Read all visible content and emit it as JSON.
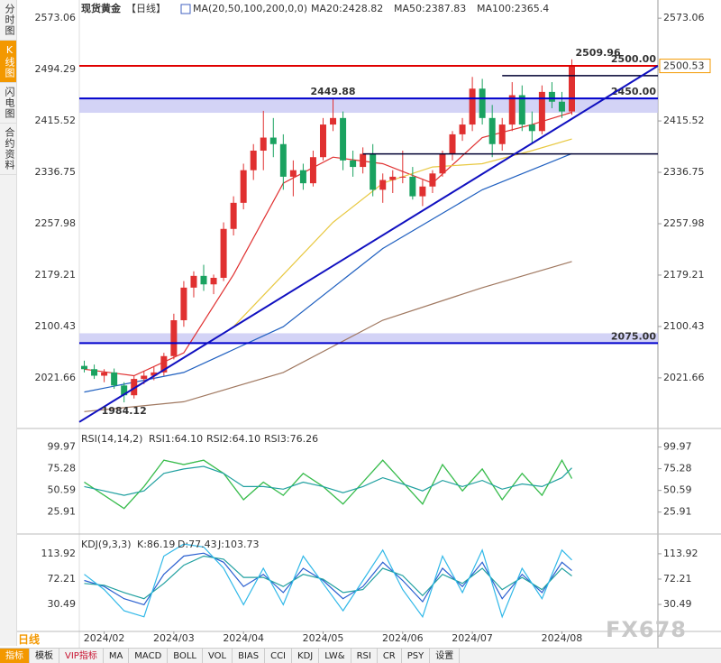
{
  "sidebar_tabs": [
    "分时图",
    "K线图",
    "闪电图",
    "合约资料"
  ],
  "period_button": "日线",
  "toolbar": [
    "指标",
    "模板",
    "VIP指标",
    "MA",
    "MACD",
    "BOLL",
    "VOL",
    "BIAS",
    "CCI",
    "KDJ",
    "LW&",
    "RSI",
    "CR",
    "PSY",
    "设置"
  ],
  "watermark": "FX678",
  "chart_data": [
    {
      "type": "candlestick",
      "title": "现货黄金",
      "subtitle": "【日线】",
      "indicator": "MA(20,50,100,200,0,0)",
      "up_color": "#e03030",
      "down_color": "#1aa260",
      "ylim": [
        1951,
        2594
      ],
      "yticks": [
        2573.06,
        2494.29,
        2415.52,
        2336.75,
        2257.98,
        2179.21,
        2100.43,
        2021.66
      ],
      "xlim": [
        -0.5,
        57.65
      ],
      "xticks": [
        {
          "value": 2,
          "label": "2024/02"
        },
        {
          "value": 9,
          "label": "2024/03"
        },
        {
          "value": 16,
          "label": "2024/04"
        },
        {
          "value": 24,
          "label": "2024/05"
        },
        {
          "value": 32,
          "label": "2024/06"
        },
        {
          "value": 39,
          "label": "2024/07"
        },
        {
          "value": 48,
          "label": "2024/08"
        }
      ],
      "candles": [
        [
          2040,
          2048,
          2030,
          2035
        ],
        [
          2035,
          2042,
          2020,
          2025
        ],
        [
          2025,
          2035,
          2015,
          2030
        ],
        [
          2030,
          2036,
          2005,
          2010
        ],
        [
          2010,
          2015,
          1984.12,
          1995
        ],
        [
          1995,
          2025,
          1990,
          2020
        ],
        [
          2020,
          2032,
          2012,
          2025
        ],
        [
          2025,
          2038,
          2018,
          2030
        ],
        [
          2030,
          2060,
          2025,
          2055
        ],
        [
          2055,
          2120,
          2050,
          2110
        ],
        [
          2110,
          2170,
          2100,
          2160
        ],
        [
          2160,
          2185,
          2145,
          2178
        ],
        [
          2178,
          2195,
          2155,
          2165
        ],
        [
          2165,
          2180,
          2150,
          2175
        ],
        [
          2175,
          2260,
          2170,
          2250
        ],
        [
          2250,
          2300,
          2240,
          2290
        ],
        [
          2290,
          2350,
          2280,
          2340
        ],
        [
          2340,
          2380,
          2325,
          2370
        ],
        [
          2370,
          2431,
          2340,
          2390
        ],
        [
          2390,
          2420,
          2360,
          2380
        ],
        [
          2380,
          2395,
          2310,
          2330
        ],
        [
          2330,
          2355,
          2300,
          2340
        ],
        [
          2340,
          2350,
          2310,
          2320
        ],
        [
          2320,
          2370,
          2315,
          2360
        ],
        [
          2360,
          2420,
          2355,
          2410
        ],
        [
          2410,
          2449.88,
          2400,
          2420
        ],
        [
          2420,
          2430,
          2340,
          2355
        ],
        [
          2355,
          2370,
          2330,
          2345
        ],
        [
          2345,
          2375,
          2335,
          2365
        ],
        [
          2365,
          2380,
          2300,
          2310
        ],
        [
          2310,
          2335,
          2290,
          2325
        ],
        [
          2325,
          2340,
          2305,
          2330
        ],
        [
          2330,
          2370,
          2320,
          2330
        ],
        [
          2330,
          2345,
          2295,
          2300
        ],
        [
          2300,
          2325,
          2285,
          2315
        ],
        [
          2315,
          2340,
          2305,
          2335
        ],
        [
          2335,
          2370,
          2330,
          2365
        ],
        [
          2365,
          2400,
          2355,
          2395
        ],
        [
          2395,
          2420,
          2385,
          2410
        ],
        [
          2410,
          2483,
          2400,
          2465
        ],
        [
          2465,
          2480,
          2410,
          2420
        ],
        [
          2420,
          2440,
          2360,
          2380
        ],
        [
          2380,
          2420,
          2370,
          2410
        ],
        [
          2410,
          2475,
          2400,
          2455
        ],
        [
          2455,
          2470,
          2400,
          2410
        ],
        [
          2410,
          2430,
          2380,
          2400
        ],
        [
          2400,
          2470,
          2395,
          2460
        ],
        [
          2460,
          2475,
          2435,
          2445
        ],
        [
          2445,
          2460,
          2420,
          2430
        ],
        [
          2430,
          2509.96,
          2425,
          2500.53
        ]
      ],
      "series": [
        {
          "name": "MA20:2428.82",
          "color": "#e03030",
          "x": [
            0,
            5,
            10,
            15,
            20,
            25,
            30,
            35,
            40,
            45,
            49
          ],
          "values": [
            2035,
            2025,
            2060,
            2180,
            2320,
            2360,
            2350,
            2320,
            2390,
            2410,
            2428.82
          ]
        },
        {
          "name": "MA50:2387.83",
          "color": "#e8c840",
          "x": [
            15,
            20,
            25,
            30,
            35,
            40,
            45,
            49
          ],
          "values": [
            2100,
            2180,
            2260,
            2320,
            2345,
            2350,
            2370,
            2387.83
          ]
        },
        {
          "name": "MA100:2365.4",
          "color": "#2060c0",
          "x": [
            0,
            10,
            20,
            30,
            40,
            49
          ],
          "values": [
            2000,
            2030,
            2100,
            2220,
            2310,
            2365.4
          ]
        },
        {
          "color": "#a07860",
          "x": [
            0,
            10,
            20,
            30,
            40,
            49
          ],
          "values": [
            1970,
            1985,
            2030,
            2110,
            2160,
            2200
          ]
        }
      ],
      "levels": [
        {
          "value": 2500,
          "label": "2500.00",
          "color": "#e00000"
        },
        {
          "value": 2450,
          "label": "2450.00",
          "color": "#0000cc"
        },
        {
          "value": 2075,
          "label": "2075.00",
          "color": "#0000cc"
        }
      ],
      "zones": [
        [
          2428,
          2450
        ],
        [
          2075,
          2090
        ]
      ],
      "boxes": [
        {
          "value": 2485,
          "from": 42
        },
        {
          "value": 2365,
          "from": 28
        }
      ],
      "trendline": {
        "x": [
          -0.5,
          57.65
        ],
        "values": [
          1954,
          2500
        ]
      },
      "annotations": [
        {
          "x": 49,
          "value": 2509.96,
          "label": "2509.96",
          "color": "#e03030"
        },
        {
          "x": 25,
          "value": 2449.88,
          "label": "2449.88",
          "color": "#e03030"
        },
        {
          "x": 4,
          "value": 1984.12,
          "label": "1984.12",
          "color": "#1aa260"
        }
      ],
      "last_price": {
        "value": 2500.53,
        "label": "2500.53"
      }
    },
    {
      "type": "line",
      "title": "RSI(14,14,2)",
      "ylim": [
        3,
        116
      ],
      "yticks": [
        99.97,
        75.28,
        50.59,
        25.91
      ],
      "series": [
        {
          "name": "RSI1:64.10",
          "color": "#30a8e0",
          "x": [
            0,
            2,
            4,
            6,
            8,
            10,
            12,
            14,
            16,
            18,
            20,
            22,
            24,
            26,
            28,
            30,
            32,
            34,
            36,
            38,
            40,
            42,
            44,
            46,
            48,
            49
          ],
          "values": [
            60,
            45,
            30,
            55,
            85,
            80,
            85,
            70,
            40,
            60,
            45,
            70,
            55,
            35,
            60,
            85,
            60,
            35,
            80,
            50,
            75,
            40,
            70,
            45,
            85,
            64.1
          ]
        },
        {
          "name": "RSI2:64.10",
          "color": "#40c040",
          "x": [
            0,
            2,
            4,
            6,
            8,
            10,
            12,
            14,
            16,
            18,
            20,
            22,
            24,
            26,
            28,
            30,
            32,
            34,
            36,
            38,
            40,
            42,
            44,
            46,
            48,
            49
          ],
          "values": [
            60,
            45,
            30,
            55,
            85,
            80,
            85,
            70,
            40,
            60,
            45,
            70,
            55,
            35,
            60,
            85,
            60,
            35,
            80,
            50,
            75,
            40,
            70,
            45,
            85,
            64.1
          ]
        },
        {
          "name": "RSI3:76.26",
          "color": "#20a0a0",
          "x": [
            0,
            2,
            4,
            6,
            8,
            10,
            12,
            14,
            16,
            18,
            20,
            22,
            24,
            26,
            28,
            30,
            32,
            34,
            36,
            38,
            40,
            42,
            44,
            46,
            48,
            49
          ],
          "values": [
            55,
            50,
            45,
            50,
            70,
            75,
            78,
            70,
            55,
            55,
            52,
            60,
            55,
            48,
            55,
            65,
            58,
            50,
            62,
            55,
            62,
            52,
            58,
            55,
            65,
            76.26
          ]
        }
      ]
    },
    {
      "type": "line",
      "title": "KDJ(9,3,3)",
      "ylim": [
        -14,
        142
      ],
      "yticks": [
        113.92,
        72.21,
        30.49
      ],
      "series": [
        {
          "name": "K:86.19",
          "color": "#2a5fd0",
          "x": [
            0,
            2,
            4,
            6,
            8,
            10,
            12,
            14,
            16,
            18,
            20,
            22,
            24,
            26,
            28,
            30,
            32,
            34,
            36,
            38,
            40,
            42,
            44,
            46,
            48,
            49
          ],
          "values": [
            70,
            60,
            40,
            30,
            80,
            110,
            115,
            100,
            60,
            80,
            50,
            90,
            70,
            40,
            60,
            100,
            70,
            35,
            90,
            60,
            100,
            40,
            80,
            50,
            100,
            86.19
          ]
        },
        {
          "name": "D:77.43",
          "color": "#20a0a0",
          "x": [
            0,
            2,
            4,
            6,
            8,
            10,
            12,
            14,
            16,
            18,
            20,
            22,
            24,
            26,
            28,
            30,
            32,
            34,
            36,
            38,
            40,
            42,
            44,
            46,
            48,
            49
          ],
          "values": [
            65,
            62,
            50,
            40,
            65,
            95,
            110,
            105,
            75,
            75,
            60,
            80,
            72,
            50,
            55,
            90,
            78,
            45,
            80,
            65,
            90,
            55,
            75,
            55,
            90,
            77.43
          ]
        },
        {
          "name": "J:103.73",
          "color": "#30b8e8",
          "x": [
            0,
            2,
            4,
            6,
            8,
            10,
            12,
            14,
            16,
            18,
            20,
            22,
            24,
            26,
            28,
            30,
            32,
            34,
            36,
            38,
            40,
            42,
            44,
            46,
            48,
            49
          ],
          "values": [
            80,
            55,
            20,
            10,
            110,
            130,
            125,
            90,
            30,
            90,
            30,
            110,
            65,
            20,
            70,
            120,
            55,
            10,
            110,
            50,
            120,
            10,
            90,
            40,
            120,
            103.73
          ]
        }
      ]
    }
  ]
}
